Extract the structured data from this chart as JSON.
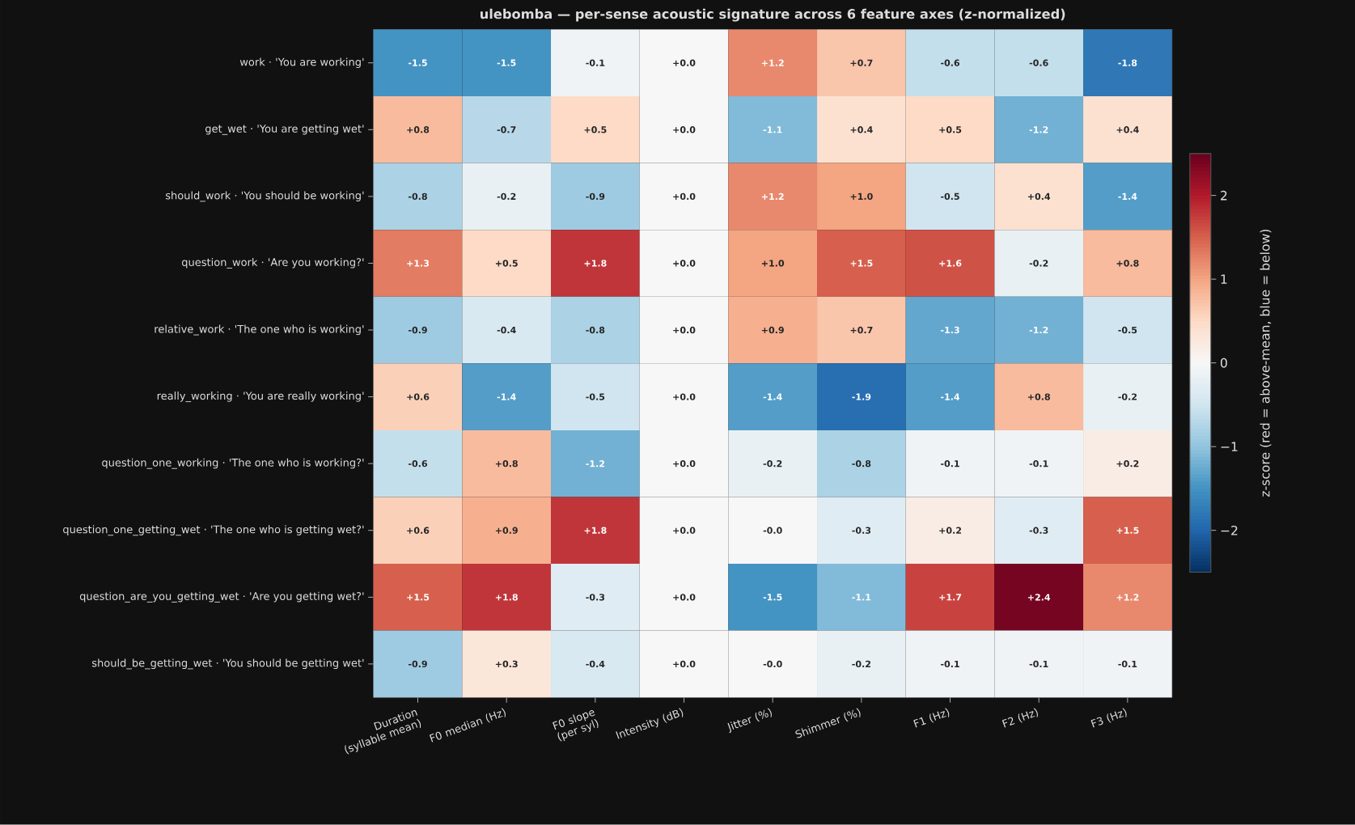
{
  "chart_data": {
    "type": "heatmap",
    "title": "ulebomba — per-sense acoustic signature across 6 feature axes (z-normalized)",
    "categories": [
      "Duration (syllable mean)",
      "F0 median (Hz)",
      "F0 slope (per syl)",
      "Intensity (dB)",
      "Jitter (%)",
      "Shimmer (%)",
      "F1 (Hz)",
      "F2 (Hz)",
      "F3 (Hz)"
    ],
    "y_categories": [
      "work · 'You are working'",
      "get_wet · 'You are getting wet'",
      "should_work · 'You should be working'",
      "question_work · 'Are you working?'",
      "relative_work · 'The one who is working'",
      "really_working · 'You are really working'",
      "question_one_working · 'The one who is working?'",
      "question_one_getting_wet · 'The one who is getting wet?'",
      "question_are_you_getting_wet · 'Are you getting wet?'",
      "should_be_getting_wet · 'You should be getting wet'"
    ],
    "cells": [
      [
        -1.5,
        -1.5,
        -0.1,
        0.0,
        1.2,
        0.7,
        -0.6,
        -0.6,
        -1.8
      ],
      [
        0.8,
        -0.7,
        0.5,
        0.0,
        -1.1,
        0.4,
        0.5,
        -1.2,
        0.4
      ],
      [
        -0.8,
        -0.2,
        -0.9,
        0.0,
        1.2,
        1.0,
        -0.5,
        0.4,
        -1.4
      ],
      [
        1.3,
        0.5,
        1.8,
        0.0,
        1.0,
        1.5,
        1.6,
        -0.2,
        0.8
      ],
      [
        -0.9,
        -0.4,
        -0.8,
        0.0,
        0.9,
        0.7,
        -1.3,
        -1.2,
        -0.5
      ],
      [
        0.6,
        -1.4,
        -0.5,
        0.0,
        -1.4,
        -1.9,
        -1.4,
        0.8,
        -0.2
      ],
      [
        -0.6,
        0.8,
        -1.2,
        0.0,
        -0.2,
        -0.8,
        -0.1,
        -0.1,
        0.2
      ],
      [
        0.6,
        0.9,
        1.8,
        0.0,
        0.0,
        -0.3,
        0.2,
        -0.3,
        1.5
      ],
      [
        1.5,
        1.8,
        -0.3,
        0.0,
        -1.5,
        -1.1,
        1.7,
        2.4,
        1.2
      ],
      [
        -0.9,
        0.3,
        -0.4,
        0.0,
        0.0,
        -0.2,
        -0.1,
        -0.1,
        -0.1
      ]
    ],
    "cell_labels": [
      [
        "-1.5",
        "-1.5",
        "-0.1",
        "+0.0",
        "+1.2",
        "+0.7",
        "-0.6",
        "-0.6",
        "-1.8"
      ],
      [
        "+0.8",
        "-0.7",
        "+0.5",
        "+0.0",
        "-1.1",
        "+0.4",
        "+0.5",
        "-1.2",
        "+0.4"
      ],
      [
        "-0.8",
        "-0.2",
        "-0.9",
        "+0.0",
        "+1.2",
        "+1.0",
        "-0.5",
        "+0.4",
        "-1.4"
      ],
      [
        "+1.3",
        "+0.5",
        "+1.8",
        "+0.0",
        "+1.0",
        "+1.5",
        "+1.6",
        "-0.2",
        "+0.8"
      ],
      [
        "-0.9",
        "-0.4",
        "-0.8",
        "+0.0",
        "+0.9",
        "+0.7",
        "-1.3",
        "-1.2",
        "-0.5"
      ],
      [
        "+0.6",
        "-1.4",
        "-0.5",
        "+0.0",
        "-1.4",
        "-1.9",
        "-1.4",
        "+0.8",
        "-0.2"
      ],
      [
        "-0.6",
        "+0.8",
        "-1.2",
        "+0.0",
        "-0.2",
        "-0.8",
        "-0.1",
        "-0.1",
        "+0.2"
      ],
      [
        "+0.6",
        "+0.9",
        "+1.8",
        "+0.0",
        "-0.0",
        "-0.3",
        "+0.2",
        "-0.3",
        "+1.5"
      ],
      [
        "+1.5",
        "+1.8",
        "-0.3",
        "+0.0",
        "-1.5",
        "-1.1",
        "+1.7",
        "+2.4",
        "+1.2"
      ],
      [
        "-0.9",
        "+0.3",
        "-0.4",
        "+0.0",
        "-0.0",
        "-0.2",
        "-0.1",
        "-0.1",
        "-0.1"
      ]
    ],
    "clim": [
      -2.5,
      2.5
    ],
    "cticks": [
      {
        "value": -2,
        "label": "−2"
      },
      {
        "value": -1,
        "label": "−1"
      },
      0,
      1,
      2
    ],
    "clabel": "z-score (red = above-mean, blue = below)"
  }
}
